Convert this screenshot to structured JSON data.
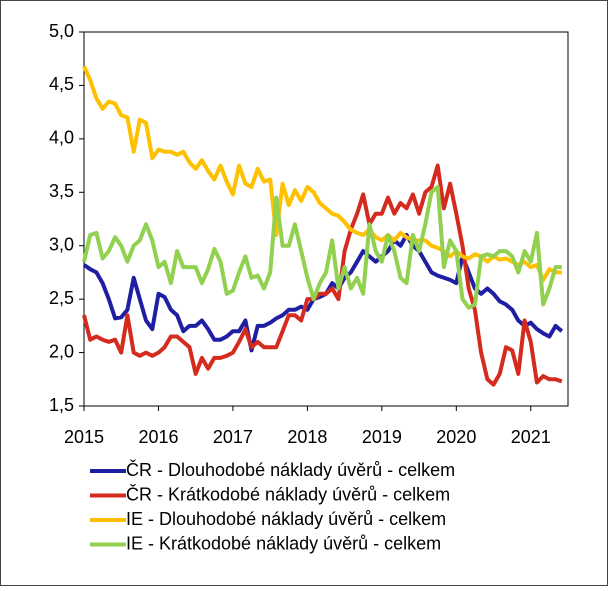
{
  "chart_data": {
    "type": "line",
    "x": [
      2015,
      2015.083,
      2015.167,
      2015.25,
      2015.333,
      2015.417,
      2015.5,
      2015.583,
      2015.667,
      2015.75,
      2015.833,
      2015.917,
      2016,
      2016.083,
      2016.167,
      2016.25,
      2016.333,
      2016.417,
      2016.5,
      2016.583,
      2016.667,
      2016.75,
      2016.833,
      2016.917,
      2017,
      2017.083,
      2017.167,
      2017.25,
      2017.333,
      2017.417,
      2017.5,
      2017.583,
      2017.667,
      2017.75,
      2017.833,
      2017.917,
      2018,
      2018.083,
      2018.167,
      2018.25,
      2018.333,
      2018.417,
      2018.5,
      2018.583,
      2018.667,
      2018.75,
      2018.833,
      2018.917,
      2019,
      2019.083,
      2019.167,
      2019.25,
      2019.333,
      2019.417,
      2019.5,
      2019.583,
      2019.667,
      2019.75,
      2019.833,
      2019.917,
      2020,
      2020.083,
      2020.167,
      2020.25,
      2020.333,
      2020.417,
      2020.5,
      2020.583,
      2020.667,
      2020.75,
      2020.833,
      2020.917,
      2021,
      2021.083,
      2021.167,
      2021.25,
      2021.333,
      2021.417
    ],
    "series": [
      {
        "name": "ČR - Dlouhodobé náklady úvěrů - celkem",
        "color": "#1f1fa3",
        "values": [
          2.82,
          2.78,
          2.75,
          2.65,
          2.5,
          2.32,
          2.33,
          2.4,
          2.7,
          2.5,
          2.3,
          2.22,
          2.55,
          2.52,
          2.4,
          2.35,
          2.2,
          2.25,
          2.25,
          2.3,
          2.22,
          2.12,
          2.12,
          2.15,
          2.2,
          2.2,
          2.3,
          2.02,
          2.25,
          2.25,
          2.28,
          2.32,
          2.35,
          2.4,
          2.4,
          2.43,
          2.4,
          2.5,
          2.52,
          2.55,
          2.65,
          2.6,
          2.7,
          2.75,
          2.85,
          2.95,
          2.9,
          2.85,
          2.9,
          2.95,
          3.05,
          3.0,
          3.1,
          3.0,
          2.95,
          2.85,
          2.75,
          2.72,
          2.7,
          2.68,
          2.65,
          2.9,
          2.75,
          2.6,
          2.55,
          2.6,
          2.55,
          2.48,
          2.45,
          2.4,
          2.3,
          2.25,
          2.28,
          2.22,
          2.18,
          2.15,
          2.25,
          2.2
        ]
      },
      {
        "name": "ČR - Krátkodobé náklady úvěrů - celkem",
        "color": "#d52b1e",
        "values": [
          2.35,
          2.12,
          2.15,
          2.12,
          2.1,
          2.12,
          2.0,
          2.35,
          2.0,
          1.97,
          2.0,
          1.97,
          2.0,
          2.05,
          2.15,
          2.15,
          2.1,
          2.05,
          1.8,
          1.95,
          1.85,
          1.95,
          1.95,
          1.97,
          2.0,
          2.1,
          2.22,
          2.05,
          2.1,
          2.05,
          2.05,
          2.05,
          2.2,
          2.35,
          2.35,
          2.3,
          2.5,
          2.5,
          2.55,
          2.55,
          2.6,
          2.5,
          2.95,
          3.15,
          3.3,
          3.48,
          3.2,
          3.3,
          3.3,
          3.45,
          3.3,
          3.4,
          3.35,
          3.48,
          3.3,
          3.5,
          3.55,
          3.75,
          3.35,
          3.58,
          3.3,
          3.0,
          2.6,
          2.4,
          2.0,
          1.75,
          1.7,
          1.8,
          2.05,
          2.02,
          1.8,
          2.3,
          2.1,
          1.72,
          1.78,
          1.75,
          1.75,
          1.73
        ]
      },
      {
        "name": "IE - Dlouhodobé náklady úvěrů - celkem",
        "color": "#ffc000",
        "values": [
          4.68,
          4.55,
          4.38,
          4.28,
          4.35,
          4.33,
          4.22,
          4.2,
          3.88,
          4.18,
          4.15,
          3.82,
          3.9,
          3.88,
          3.88,
          3.85,
          3.88,
          3.78,
          3.72,
          3.8,
          3.7,
          3.62,
          3.75,
          3.6,
          3.48,
          3.75,
          3.58,
          3.55,
          3.72,
          3.6,
          3.62,
          3.1,
          3.58,
          3.38,
          3.52,
          3.42,
          3.55,
          3.5,
          3.4,
          3.35,
          3.3,
          3.28,
          3.22,
          3.15,
          3.12,
          3.1,
          3.15,
          3.08,
          3.05,
          3.1,
          3.05,
          3.12,
          3.08,
          3.05,
          3.05,
          3.05,
          3.0,
          2.98,
          2.95,
          2.9,
          2.95,
          2.9,
          2.88,
          2.92,
          2.9,
          2.85,
          2.9,
          2.87,
          2.88,
          2.85,
          2.82,
          2.85,
          2.8,
          2.82,
          2.68,
          2.78,
          2.75,
          2.75
        ]
      },
      {
        "name": "IE - Krátkodobé náklady úvěrů - celkem",
        "color": "#92d050",
        "values": [
          2.85,
          3.1,
          3.12,
          2.88,
          2.95,
          3.08,
          3.0,
          2.85,
          3.0,
          3.05,
          3.2,
          3.05,
          2.8,
          2.85,
          2.65,
          2.95,
          2.8,
          2.8,
          2.8,
          2.65,
          2.78,
          2.97,
          2.85,
          2.55,
          2.58,
          2.75,
          2.9,
          2.7,
          2.72,
          2.6,
          2.75,
          3.45,
          3.0,
          3.0,
          3.2,
          2.95,
          2.7,
          2.5,
          2.65,
          2.75,
          3.05,
          2.6,
          2.8,
          2.6,
          2.7,
          2.55,
          3.2,
          2.95,
          2.85,
          3.1,
          2.95,
          2.7,
          2.65,
          3.1,
          2.95,
          3.2,
          3.5,
          3.55,
          2.8,
          3.05,
          2.95,
          2.5,
          2.42,
          2.45,
          2.9,
          2.92,
          2.9,
          2.95,
          2.95,
          2.9,
          2.75,
          2.95,
          2.85,
          3.12,
          2.45,
          2.6,
          2.8,
          2.8
        ]
      }
    ],
    "xlim": [
      2015,
      2021.5
    ],
    "xticks": [
      2015,
      2016,
      2017,
      2018,
      2019,
      2020,
      2021
    ],
    "ylim": [
      1.5,
      5
    ],
    "yticks": [
      {
        "value": 1.5,
        "label": "1,5"
      },
      {
        "value": 2,
        "label": "2,0"
      },
      {
        "value": 2.5,
        "label": "2,5"
      },
      {
        "value": 3,
        "label": "3,0"
      },
      {
        "value": 3.5,
        "label": "3,5"
      },
      {
        "value": 4,
        "label": "4,0"
      },
      {
        "value": 4.5,
        "label": "4,5"
      },
      {
        "value": 5,
        "label": "5,0"
      }
    ],
    "grid": false
  }
}
